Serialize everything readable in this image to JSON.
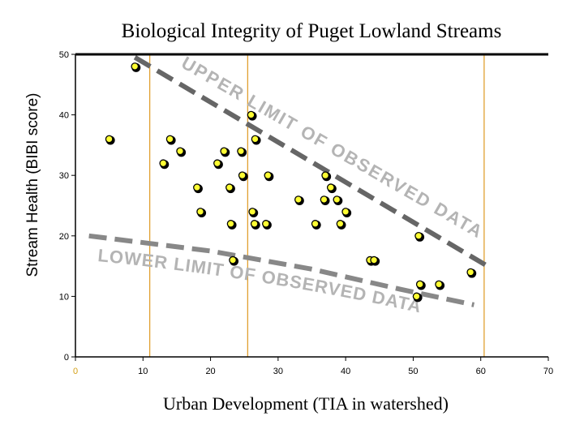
{
  "chart_data": {
    "type": "scatter",
    "title": "Biological Integrity of Puget Lowland Streams",
    "xlabel": "Urban Development (TIA in watershed)",
    "ylabel": "Stream Health (BIBI score)",
    "xlim": [
      0,
      70
    ],
    "ylim": [
      0,
      50
    ],
    "x_ticks": [
      0,
      10,
      20,
      30,
      40,
      50,
      60,
      70
    ],
    "y_ticks": [
      0,
      10,
      20,
      30,
      40,
      50
    ],
    "x_tick_labels": [
      "0",
      "10",
      "20",
      "30",
      "40",
      "50",
      "60",
      "70"
    ],
    "y_tick_labels": [
      "0",
      "10",
      "20",
      "30",
      "40",
      "50"
    ],
    "grid": false,
    "vertical_reference_lines": [
      11,
      25.5,
      60.5
    ],
    "reference_line_color": "#e0a030",
    "marker_fill": "#ffff33",
    "marker_edge": "#000000",
    "points": [
      {
        "x": 8.8,
        "y": 48
      },
      {
        "x": 5,
        "y": 36
      },
      {
        "x": 13,
        "y": 32
      },
      {
        "x": 14,
        "y": 36
      },
      {
        "x": 15.5,
        "y": 34
      },
      {
        "x": 18,
        "y": 28
      },
      {
        "x": 18.5,
        "y": 24
      },
      {
        "x": 21,
        "y": 32
      },
      {
        "x": 22,
        "y": 34
      },
      {
        "x": 22.8,
        "y": 28
      },
      {
        "x": 23,
        "y": 22
      },
      {
        "x": 23.3,
        "y": 16
      },
      {
        "x": 24.5,
        "y": 34
      },
      {
        "x": 24.7,
        "y": 30
      },
      {
        "x": 26,
        "y": 40
      },
      {
        "x": 26.2,
        "y": 24
      },
      {
        "x": 26.5,
        "y": 22
      },
      {
        "x": 26.6,
        "y": 36
      },
      {
        "x": 28.2,
        "y": 22
      },
      {
        "x": 28.5,
        "y": 30
      },
      {
        "x": 33,
        "y": 26
      },
      {
        "x": 35.5,
        "y": 22
      },
      {
        "x": 36.8,
        "y": 26
      },
      {
        "x": 37,
        "y": 30
      },
      {
        "x": 37.8,
        "y": 28
      },
      {
        "x": 38.7,
        "y": 26
      },
      {
        "x": 39.2,
        "y": 22
      },
      {
        "x": 40,
        "y": 24
      },
      {
        "x": 43.6,
        "y": 16
      },
      {
        "x": 44.2,
        "y": 16
      },
      {
        "x": 50.5,
        "y": 10
      },
      {
        "x": 50.8,
        "y": 20
      },
      {
        "x": 51,
        "y": 12
      },
      {
        "x": 53.8,
        "y": 12
      },
      {
        "x": 58.5,
        "y": 14
      }
    ],
    "upper_line": {
      "label": "UPPER LIMIT OF OBSERVED DATA",
      "x": [
        8.8,
        61
      ],
      "y": [
        49.5,
        15
      ]
    },
    "lower_line": {
      "label": "LOWER LIMIT OF OBSERVED DATA",
      "x": [
        2,
        20,
        35,
        48,
        59
      ],
      "y": [
        20,
        17.5,
        14.5,
        11.2,
        8.6
      ]
    },
    "annotation_color": "#b4b4b4"
  }
}
